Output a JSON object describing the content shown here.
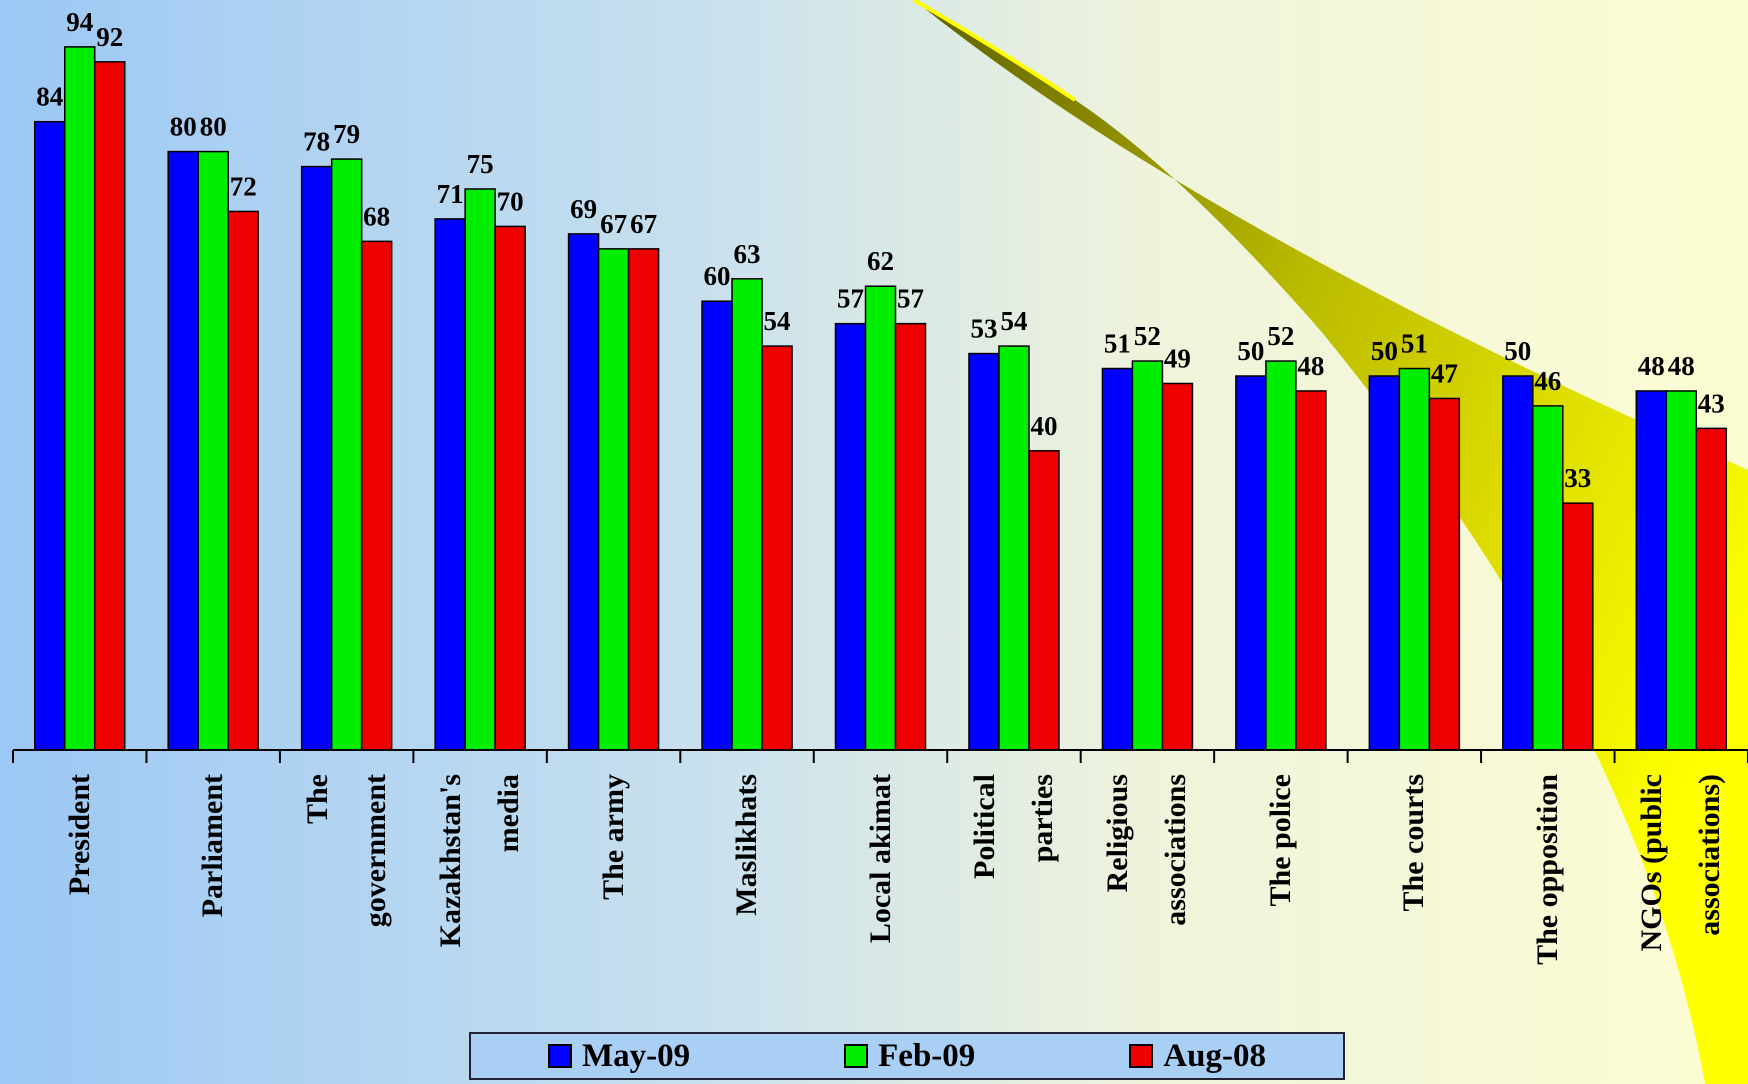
{
  "chart_data": {
    "type": "bar",
    "categories": [
      "President",
      "Parliament",
      "The\ngovernment",
      "Kazakhstan's\nmedia",
      "The army",
      "Maslikhats",
      "Local akimat",
      "Political\nparties",
      "Religious\nassociations",
      "The police",
      "The courts",
      "The opposition",
      "NGOs (public\nassociations)"
    ],
    "series": [
      {
        "name": "May-09",
        "color": "#0000ff",
        "values": [
          84,
          80,
          78,
          71,
          69,
          60,
          57,
          53,
          51,
          50,
          50,
          50,
          48
        ]
      },
      {
        "name": "Feb-09",
        "color": "#00ee00",
        "values": [
          94,
          80,
          79,
          75,
          67,
          63,
          62,
          54,
          52,
          52,
          51,
          46,
          48
        ]
      },
      {
        "name": "Aug-08",
        "color": "#ee0000",
        "values": [
          92,
          72,
          68,
          70,
          67,
          54,
          57,
          40,
          49,
          48,
          47,
          33,
          43
        ]
      }
    ],
    "ylim": [
      0,
      100
    ]
  }
}
